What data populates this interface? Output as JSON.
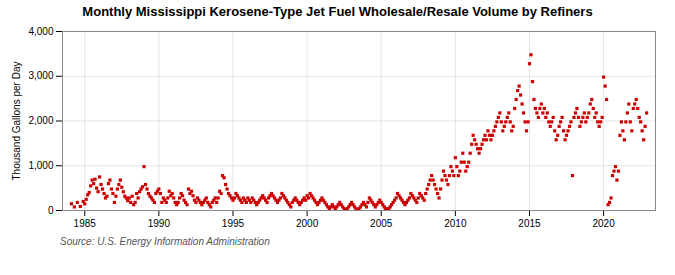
{
  "chart_data": {
    "type": "scatter",
    "title": "Monthly Mississippi Kerosene-Type Jet Fuel Wholesale/Resale Volume by Refiners",
    "ylabel": "Thousand Gallons per Day",
    "source": "Source: U.S. Energy Information Administration",
    "color": "#cc0000",
    "marker": "square",
    "grid": true,
    "xlim": [
      1983.5,
      2023.5
    ],
    "ylim": [
      0,
      4000
    ],
    "xticks": [
      1985,
      1990,
      1995,
      2000,
      2005,
      2010,
      2015,
      2020
    ],
    "yticks": [
      0,
      {
        "value": 1000,
        "label": "1,000"
      },
      {
        "value": 2000,
        "label": "2,000"
      },
      {
        "value": 3000,
        "label": "3,000"
      },
      {
        "value": 4000,
        "label": "4,000"
      }
    ],
    "x": [
      1984.1,
      1984.3,
      1984.5,
      1984.7,
      1984.9,
      1985.0,
      1985.1,
      1985.2,
      1985.3,
      1985.4,
      1985.5,
      1985.6,
      1985.7,
      1985.8,
      1985.9,
      1986.0,
      1986.1,
      1986.2,
      1986.3,
      1986.4,
      1986.5,
      1986.6,
      1986.7,
      1986.8,
      1986.9,
      1987.0,
      1987.1,
      1987.2,
      1987.3,
      1987.4,
      1987.5,
      1987.6,
      1987.7,
      1987.8,
      1987.9,
      1988.0,
      1988.1,
      1988.2,
      1988.3,
      1988.4,
      1988.5,
      1988.6,
      1988.7,
      1988.8,
      1988.9,
      1989.0,
      1989.1,
      1989.2,
      1989.3,
      1989.4,
      1989.5,
      1989.6,
      1989.7,
      1989.8,
      1989.9,
      1990.0,
      1990.1,
      1990.2,
      1990.3,
      1990.4,
      1990.5,
      1990.6,
      1990.7,
      1990.8,
      1990.9,
      1991.0,
      1991.1,
      1991.2,
      1991.3,
      1991.4,
      1991.5,
      1991.6,
      1991.7,
      1991.8,
      1991.9,
      1992.0,
      1992.1,
      1992.2,
      1992.3,
      1992.4,
      1992.5,
      1992.6,
      1992.7,
      1992.8,
      1992.9,
      1993.0,
      1993.1,
      1993.2,
      1993.3,
      1993.4,
      1993.5,
      1993.6,
      1993.7,
      1993.8,
      1993.9,
      1994.0,
      1994.1,
      1994.2,
      1994.3,
      1994.4,
      1994.5,
      1994.6,
      1994.7,
      1994.8,
      1994.9,
      1995.0,
      1995.1,
      1995.2,
      1995.3,
      1995.4,
      1995.5,
      1995.6,
      1995.7,
      1995.8,
      1995.9,
      1996.0,
      1996.1,
      1996.2,
      1996.3,
      1996.4,
      1996.5,
      1996.6,
      1996.7,
      1996.8,
      1996.9,
      1997.0,
      1997.1,
      1997.2,
      1997.3,
      1997.4,
      1997.5,
      1997.6,
      1997.7,
      1997.8,
      1997.9,
      1998.0,
      1998.1,
      1998.2,
      1998.3,
      1998.4,
      1998.5,
      1998.6,
      1998.7,
      1998.8,
      1998.9,
      1999.0,
      1999.1,
      1999.2,
      1999.3,
      1999.4,
      1999.5,
      1999.6,
      1999.7,
      1999.8,
      1999.9,
      2000.0,
      2000.1,
      2000.2,
      2000.3,
      2000.4,
      2000.5,
      2000.6,
      2000.7,
      2000.8,
      2000.9,
      2001.0,
      2001.1,
      2001.2,
      2001.3,
      2001.4,
      2001.5,
      2001.6,
      2001.7,
      2001.8,
      2001.9,
      2002.0,
      2002.1,
      2002.2,
      2002.3,
      2002.4,
      2002.5,
      2002.6,
      2002.7,
      2002.8,
      2002.9,
      2003.0,
      2003.1,
      2003.2,
      2003.3,
      2003.4,
      2003.5,
      2003.6,
      2003.7,
      2003.8,
      2003.9,
      2004.0,
      2004.1,
      2004.2,
      2004.3,
      2004.4,
      2004.5,
      2004.6,
      2004.7,
      2004.8,
      2004.9,
      2005.0,
      2005.1,
      2005.2,
      2005.3,
      2005.4,
      2005.5,
      2005.6,
      2005.7,
      2005.8,
      2005.9,
      2006.0,
      2006.1,
      2006.2,
      2006.3,
      2006.4,
      2006.5,
      2006.6,
      2006.7,
      2006.8,
      2006.9,
      2007.0,
      2007.1,
      2007.2,
      2007.3,
      2007.4,
      2007.5,
      2007.6,
      2007.7,
      2007.8,
      2007.9,
      2008.0,
      2008.1,
      2008.2,
      2008.3,
      2008.4,
      2008.5,
      2008.6,
      2008.7,
      2008.8,
      2008.9,
      2009.0,
      2009.1,
      2009.2,
      2009.3,
      2009.4,
      2009.5,
      2009.6,
      2009.7,
      2009.8,
      2009.9,
      2010.0,
      2010.1,
      2010.2,
      2010.3,
      2010.4,
      2010.5,
      2010.6,
      2010.7,
      2010.8,
      2010.9,
      2011.0,
      2011.1,
      2011.2,
      2011.3,
      2011.4,
      2011.5,
      2011.6,
      2011.7,
      2011.8,
      2011.9,
      2012.0,
      2012.1,
      2012.2,
      2012.3,
      2012.4,
      2012.5,
      2012.6,
      2012.7,
      2012.8,
      2012.9,
      2013.0,
      2013.1,
      2013.2,
      2013.3,
      2013.4,
      2013.5,
      2013.6,
      2013.7,
      2013.8,
      2013.9,
      2014.0,
      2014.1,
      2014.2,
      2014.3,
      2014.4,
      2014.5,
      2014.6,
      2014.7,
      2014.8,
      2014.9,
      2015.0,
      2015.1,
      2015.2,
      2015.3,
      2015.4,
      2015.5,
      2015.6,
      2015.7,
      2015.8,
      2015.9,
      2016.0,
      2016.1,
      2016.2,
      2016.3,
      2016.4,
      2016.5,
      2016.6,
      2016.7,
      2016.8,
      2016.9,
      2017.0,
      2017.1,
      2017.2,
      2017.3,
      2017.4,
      2017.5,
      2017.6,
      2017.7,
      2017.8,
      2017.9,
      2018.0,
      2018.1,
      2018.2,
      2018.3,
      2018.4,
      2018.5,
      2018.6,
      2018.7,
      2018.8,
      2018.9,
      2019.0,
      2019.1,
      2019.2,
      2019.3,
      2019.4,
      2019.5,
      2019.6,
      2019.7,
      2019.8,
      2019.9,
      2020.0,
      2020.1,
      2020.2,
      2020.3,
      2020.4,
      2020.5,
      2020.6,
      2020.7,
      2020.8,
      2020.9,
      2021.0,
      2021.1,
      2021.2,
      2021.3,
      2021.4,
      2021.5,
      2021.6,
      2021.7,
      2021.8,
      2021.9,
      2022.0,
      2022.1,
      2022.2,
      2022.3,
      2022.4,
      2022.5,
      2022.6,
      2022.7,
      2022.8,
      2022.9
    ],
    "values": [
      150,
      80,
      180,
      90,
      200,
      150,
      250,
      350,
      400,
      550,
      680,
      600,
      700,
      500,
      420,
      750,
      580,
      480,
      380,
      280,
      320,
      600,
      680,
      480,
      380,
      180,
      320,
      480,
      580,
      680,
      520,
      420,
      320,
      280,
      220,
      280,
      180,
      320,
      130,
      180,
      380,
      280,
      420,
      480,
      530,
      980,
      580,
      480,
      380,
      320,
      280,
      230,
      180,
      380,
      430,
      480,
      380,
      180,
      280,
      230,
      180,
      280,
      430,
      330,
      380,
      280,
      180,
      130,
      180,
      280,
      380,
      330,
      230,
      180,
      130,
      480,
      380,
      430,
      330,
      230,
      180,
      280,
      230,
      180,
      130,
      180,
      230,
      280,
      180,
      130,
      80,
      180,
      230,
      280,
      180,
      280,
      430,
      380,
      780,
      730,
      580,
      480,
      380,
      330,
      280,
      230,
      280,
      380,
      330,
      280,
      230,
      180,
      280,
      230,
      180,
      280,
      230,
      180,
      280,
      230,
      180,
      130,
      180,
      230,
      280,
      330,
      280,
      230,
      180,
      280,
      330,
      380,
      330,
      280,
      230,
      180,
      230,
      280,
      380,
      330,
      280,
      230,
      180,
      130,
      80,
      180,
      230,
      280,
      230,
      180,
      130,
      180,
      230,
      280,
      230,
      330,
      280,
      380,
      330,
      280,
      230,
      180,
      130,
      180,
      230,
      280,
      230,
      180,
      130,
      80,
      40,
      80,
      130,
      80,
      40,
      80,
      130,
      180,
      130,
      80,
      40,
      10,
      40,
      80,
      130,
      180,
      130,
      80,
      40,
      10,
      40,
      80,
      130,
      180,
      130,
      80,
      180,
      280,
      230,
      180,
      130,
      80,
      130,
      180,
      230,
      180,
      130,
      80,
      40,
      10,
      40,
      80,
      130,
      180,
      230,
      280,
      380,
      330,
      280,
      230,
      180,
      130,
      180,
      230,
      280,
      380,
      330,
      280,
      230,
      180,
      280,
      380,
      330,
      280,
      230,
      380,
      480,
      580,
      680,
      780,
      680,
      580,
      480,
      380,
      280,
      480,
      680,
      880,
      780,
      680,
      580,
      780,
      980,
      880,
      780,
      1180,
      980,
      780,
      880,
      1080,
      1280,
      1080,
      880,
      980,
      1080,
      1280,
      1480,
      1680,
      1580,
      1480,
      1380,
      1280,
      1380,
      1480,
      1580,
      1680,
      1580,
      1780,
      1680,
      1580,
      1680,
      1780,
      1880,
      1980,
      2080,
      2180,
      1980,
      1780,
      1880,
      1980,
      2080,
      2180,
      1980,
      1780,
      1880,
      2280,
      2480,
      2680,
      2780,
      2580,
      2380,
      2180,
      1980,
      1780,
      1980,
      3280,
      3480,
      2880,
      2480,
      2280,
      2180,
      2080,
      2280,
      2380,
      2180,
      2280,
      2080,
      2180,
      1980,
      1880,
      1980,
      2080,
      1780,
      1580,
      1680,
      1880,
      1980,
      2080,
      1780,
      1580,
      1680,
      1780,
      1880,
      1980,
      780,
      2080,
      2180,
      2280,
      2080,
      1880,
      1980,
      2080,
      2180,
      1980,
      2080,
      2180,
      2380,
      2480,
      2280,
      2080,
      2180,
      1980,
      1880,
      1980,
      2080,
      2980,
      2780,
      2480,
      130,
      180,
      280,
      780,
      880,
      980,
      680,
      880,
      1680,
      1980,
      1780,
      1580,
      1980,
      2180,
      2380,
      1980,
      1780,
      2280,
      2380,
      2480,
      2280,
      2080,
      1980,
      1780,
      1580,
      1880,
      2180
    ]
  }
}
